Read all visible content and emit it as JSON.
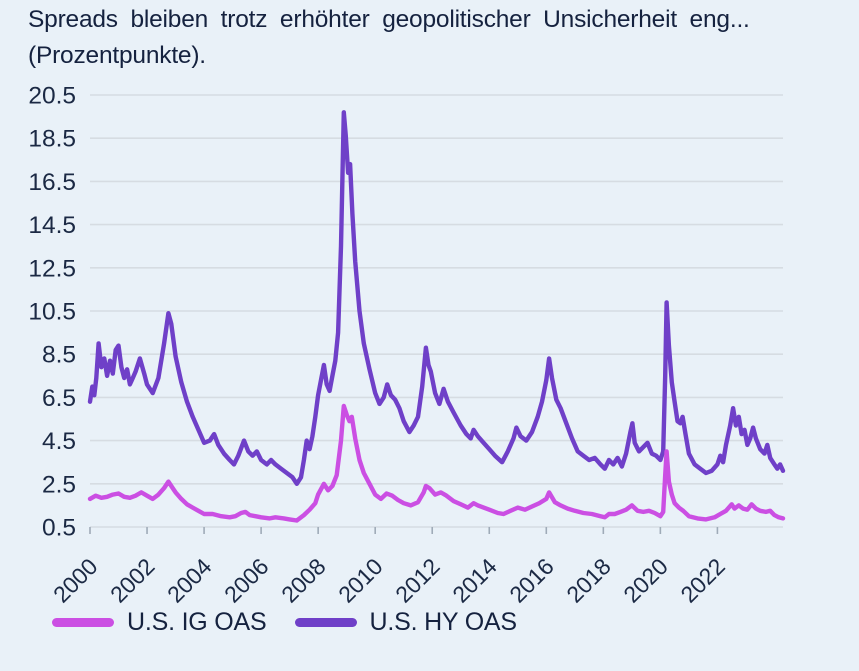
{
  "title": {
    "line1": "Spreads bleiben trotz erhöhter geopolitischer  Unsicherheit eng...",
    "line2": "(Prozentpunkte)."
  },
  "colors": {
    "background": "#e9f1f8",
    "text": "#1b2944",
    "grid": "#d6dce2",
    "tick": "#9fabb8"
  },
  "legend": {
    "items": [
      "U.S. IG OAS",
      "U.S. HY OAS"
    ]
  },
  "chart_data": {
    "type": "line",
    "title": "Spreads bleiben trotz erhöhter geopolitischer Unsicherheit eng... (Prozentpunkte).",
    "xlabel": "",
    "ylabel": "",
    "unit": "Prozentpunkte",
    "grid": "horizontal",
    "legend_position": "bottom",
    "xlim": [
      2000,
      2024.3
    ],
    "ylim": [
      0.5,
      20.5
    ],
    "xticks": [
      2000,
      2002,
      2004,
      2006,
      2008,
      2010,
      2012,
      2014,
      2016,
      2018,
      2020,
      2022
    ],
    "yticks": [
      0.5,
      2.5,
      4.5,
      6.5,
      8.5,
      10.5,
      12.5,
      14.5,
      16.5,
      18.5,
      20.5
    ],
    "series": [
      {
        "name": "U.S. IG OAS",
        "color": "#cb4fe3",
        "x": [
          2000.0,
          2000.2,
          2000.4,
          2000.6,
          2000.8,
          2001.0,
          2001.2,
          2001.4,
          2001.6,
          2001.8,
          2002.0,
          2002.2,
          2002.4,
          2002.6,
          2002.75,
          2002.9,
          2003.0,
          2003.2,
          2003.4,
          2003.6,
          2003.8,
          2004.0,
          2004.3,
          2004.6,
          2004.9,
          2005.1,
          2005.3,
          2005.45,
          2005.6,
          2005.8,
          2006.0,
          2006.3,
          2006.5,
          2006.8,
          2007.0,
          2007.25,
          2007.5,
          2007.7,
          2007.9,
          2008.0,
          2008.2,
          2008.35,
          2008.5,
          2008.65,
          2008.8,
          2008.9,
          2009.0,
          2009.1,
          2009.18,
          2009.3,
          2009.45,
          2009.6,
          2009.8,
          2010.0,
          2010.2,
          2010.4,
          2010.6,
          2010.8,
          2011.0,
          2011.25,
          2011.5,
          2011.7,
          2011.78,
          2011.9,
          2012.1,
          2012.3,
          2012.5,
          2012.75,
          2013.0,
          2013.25,
          2013.45,
          2013.6,
          2013.8,
          2014.0,
          2014.3,
          2014.5,
          2014.75,
          2015.0,
          2015.25,
          2015.5,
          2015.75,
          2016.0,
          2016.1,
          2016.3,
          2016.5,
          2016.75,
          2017.0,
          2017.3,
          2017.6,
          2017.9,
          2018.05,
          2018.2,
          2018.4,
          2018.6,
          2018.8,
          2019.0,
          2019.2,
          2019.4,
          2019.6,
          2019.8,
          2020.0,
          2020.1,
          2020.17,
          2020.22,
          2020.3,
          2020.4,
          2020.5,
          2020.65,
          2020.8,
          2021.0,
          2021.3,
          2021.6,
          2021.9,
          2022.1,
          2022.3,
          2022.5,
          2022.6,
          2022.75,
          2022.9,
          2023.05,
          2023.2,
          2023.35,
          2023.5,
          2023.7,
          2023.85,
          2024.0,
          2024.15,
          2024.3
        ],
        "values": [
          1.8,
          1.95,
          1.85,
          1.9,
          2.0,
          2.05,
          1.9,
          1.85,
          1.95,
          2.1,
          1.95,
          1.8,
          2.0,
          2.3,
          2.6,
          2.3,
          2.1,
          1.8,
          1.55,
          1.4,
          1.25,
          1.1,
          1.1,
          1.0,
          0.95,
          1.0,
          1.15,
          1.2,
          1.05,
          1.0,
          0.95,
          0.9,
          0.95,
          0.9,
          0.85,
          0.8,
          1.05,
          1.3,
          1.6,
          2.0,
          2.5,
          2.2,
          2.4,
          2.9,
          4.5,
          6.1,
          5.7,
          5.4,
          5.6,
          4.6,
          3.6,
          3.0,
          2.5,
          2.0,
          1.8,
          2.05,
          1.95,
          1.75,
          1.6,
          1.5,
          1.65,
          2.1,
          2.4,
          2.3,
          2.0,
          2.1,
          1.95,
          1.7,
          1.55,
          1.4,
          1.6,
          1.5,
          1.4,
          1.3,
          1.15,
          1.1,
          1.25,
          1.4,
          1.3,
          1.45,
          1.6,
          1.8,
          2.1,
          1.65,
          1.5,
          1.35,
          1.25,
          1.15,
          1.1,
          1.0,
          0.95,
          1.1,
          1.1,
          1.2,
          1.3,
          1.5,
          1.25,
          1.2,
          1.25,
          1.15,
          1.0,
          1.2,
          2.9,
          4.0,
          2.6,
          2.0,
          1.6,
          1.4,
          1.25,
          1.0,
          0.9,
          0.85,
          0.95,
          1.1,
          1.25,
          1.55,
          1.35,
          1.5,
          1.35,
          1.3,
          1.55,
          1.35,
          1.25,
          1.2,
          1.25,
          1.05,
          0.95,
          0.9
        ]
      },
      {
        "name": "U.S. HY OAS",
        "color": "#6f40c8",
        "x": [
          2000.0,
          2000.08,
          2000.15,
          2000.22,
          2000.3,
          2000.4,
          2000.5,
          2000.6,
          2000.7,
          2000.8,
          2000.9,
          2001.0,
          2001.1,
          2001.2,
          2001.3,
          2001.4,
          2001.5,
          2001.6,
          2001.75,
          2001.9,
          2002.0,
          2002.2,
          2002.4,
          2002.6,
          2002.75,
          2002.85,
          2003.0,
          2003.2,
          2003.4,
          2003.6,
          2003.8,
          2004.0,
          2004.2,
          2004.35,
          2004.5,
          2004.7,
          2004.9,
          2005.05,
          2005.2,
          2005.4,
          2005.55,
          2005.7,
          2005.85,
          2006.0,
          2006.2,
          2006.35,
          2006.5,
          2006.7,
          2006.9,
          2007.1,
          2007.25,
          2007.4,
          2007.5,
          2007.6,
          2007.7,
          2007.8,
          2007.9,
          2008.0,
          2008.1,
          2008.2,
          2008.3,
          2008.4,
          2008.5,
          2008.6,
          2008.7,
          2008.8,
          2008.9,
          2008.97,
          2009.05,
          2009.12,
          2009.2,
          2009.3,
          2009.45,
          2009.6,
          2009.8,
          2010.0,
          2010.15,
          2010.3,
          2010.42,
          2010.55,
          2010.7,
          2010.85,
          2011.0,
          2011.2,
          2011.35,
          2011.5,
          2011.65,
          2011.78,
          2011.87,
          2011.95,
          2012.1,
          2012.25,
          2012.4,
          2012.55,
          2012.75,
          2013.0,
          2013.2,
          2013.35,
          2013.45,
          2013.6,
          2013.8,
          2014.0,
          2014.2,
          2014.45,
          2014.65,
          2014.85,
          2014.95,
          2015.1,
          2015.3,
          2015.5,
          2015.7,
          2015.85,
          2016.0,
          2016.1,
          2016.2,
          2016.35,
          2016.5,
          2016.7,
          2016.9,
          2017.1,
          2017.3,
          2017.5,
          2017.7,
          2017.9,
          2018.05,
          2018.2,
          2018.35,
          2018.5,
          2018.65,
          2018.8,
          2018.95,
          2019.02,
          2019.1,
          2019.25,
          2019.4,
          2019.55,
          2019.7,
          2019.85,
          2020.0,
          2020.1,
          2020.17,
          2020.22,
          2020.3,
          2020.4,
          2020.5,
          2020.6,
          2020.7,
          2020.78,
          2020.88,
          2021.0,
          2021.2,
          2021.4,
          2021.6,
          2021.8,
          2022.0,
          2022.1,
          2022.2,
          2022.3,
          2022.45,
          2022.55,
          2022.65,
          2022.75,
          2022.85,
          2022.95,
          2023.05,
          2023.15,
          2023.25,
          2023.35,
          2023.5,
          2023.65,
          2023.75,
          2023.85,
          2024.0,
          2024.1,
          2024.2,
          2024.3
        ],
        "values": [
          6.3,
          7.0,
          6.6,
          7.4,
          9.0,
          7.9,
          8.3,
          7.5,
          8.2,
          7.6,
          8.7,
          8.9,
          7.9,
          7.4,
          7.8,
          7.1,
          7.4,
          7.7,
          8.3,
          7.6,
          7.1,
          6.7,
          7.4,
          9.0,
          10.4,
          9.9,
          8.4,
          7.2,
          6.3,
          5.6,
          5.0,
          4.4,
          4.5,
          4.8,
          4.3,
          3.9,
          3.6,
          3.4,
          3.8,
          4.5,
          4.0,
          3.8,
          4.0,
          3.6,
          3.4,
          3.6,
          3.4,
          3.2,
          3.0,
          2.8,
          2.5,
          2.8,
          3.6,
          4.5,
          4.1,
          4.7,
          5.6,
          6.6,
          7.3,
          8.0,
          7.1,
          6.8,
          7.5,
          8.2,
          9.5,
          13.5,
          19.7,
          18.6,
          16.9,
          17.3,
          15.0,
          12.8,
          10.5,
          9.0,
          7.8,
          6.7,
          6.2,
          6.5,
          7.1,
          6.6,
          6.4,
          6.0,
          5.4,
          4.9,
          5.2,
          5.6,
          7.0,
          8.8,
          8.0,
          7.7,
          6.7,
          6.2,
          6.9,
          6.3,
          5.8,
          5.2,
          4.8,
          4.6,
          5.0,
          4.7,
          4.4,
          4.1,
          3.8,
          3.5,
          4.0,
          4.6,
          5.1,
          4.7,
          4.5,
          4.9,
          5.6,
          6.3,
          7.3,
          8.3,
          7.4,
          6.4,
          6.0,
          5.3,
          4.6,
          4.0,
          3.8,
          3.6,
          3.7,
          3.4,
          3.2,
          3.6,
          3.4,
          3.7,
          3.3,
          3.9,
          4.9,
          5.3,
          4.4,
          4.0,
          4.2,
          4.4,
          3.9,
          3.8,
          3.6,
          4.0,
          7.5,
          10.9,
          8.9,
          7.2,
          6.3,
          5.4,
          5.3,
          5.6,
          4.8,
          3.9,
          3.4,
          3.2,
          3.0,
          3.1,
          3.4,
          3.8,
          3.5,
          4.3,
          5.2,
          6.0,
          5.2,
          5.6,
          4.8,
          5.0,
          4.3,
          4.6,
          5.1,
          4.6,
          4.1,
          3.9,
          4.3,
          3.7,
          3.4,
          3.2,
          3.4,
          3.1
        ]
      }
    ]
  }
}
